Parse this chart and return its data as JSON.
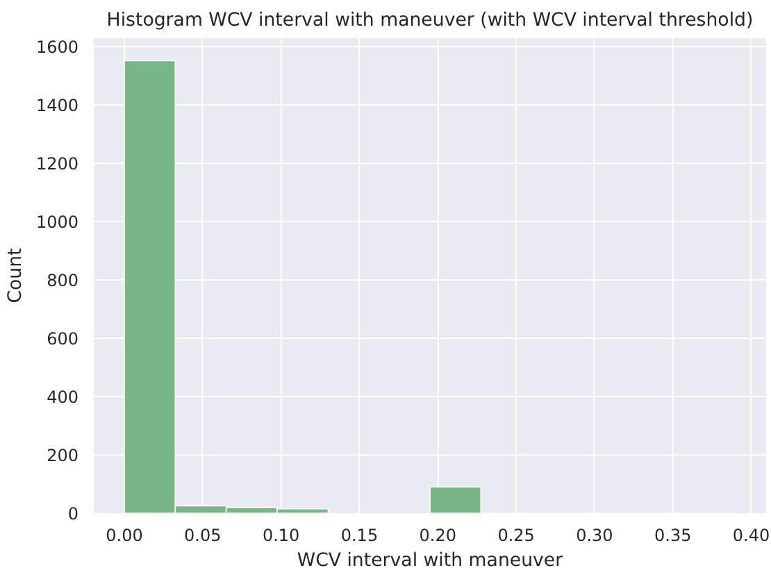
{
  "chart_data": {
    "type": "histogram",
    "title": "Histogram WCV interval with maneuver (with WCV interval threshold)",
    "xlabel": "WCV interval with maneuver",
    "ylabel": "Count",
    "bins": [
      0,
      0.0325,
      0.065,
      0.0975,
      0.13,
      0.1625,
      0.195,
      0.2275,
      0.26,
      0.2925,
      0.325,
      0.3575,
      0.39
    ],
    "values": [
      1550,
      25,
      20,
      15,
      null,
      null,
      90,
      0,
      0,
      0,
      0,
      0
    ],
    "color": "#78b686",
    "xlim": [
      -0.0195,
      0.4095
    ],
    "xticks": [
      {
        "value": 0,
        "label": "0.00"
      },
      {
        "value": 0.05,
        "label": "0.05"
      },
      {
        "value": 0.1,
        "label": "0.10"
      },
      {
        "value": 0.15,
        "label": "0.15"
      },
      {
        "value": 0.2,
        "label": "0.20"
      },
      {
        "value": 0.25,
        "label": "0.25"
      },
      {
        "value": 0.3,
        "label": "0.30"
      },
      {
        "value": 0.35,
        "label": "0.35"
      },
      {
        "value": 0.4,
        "label": "0.40"
      }
    ],
    "ylim": [
      0,
      1627.5
    ],
    "yticks": [
      0,
      200,
      400,
      600,
      800,
      1000,
      1200,
      1400,
      1600
    ],
    "grid": true
  }
}
